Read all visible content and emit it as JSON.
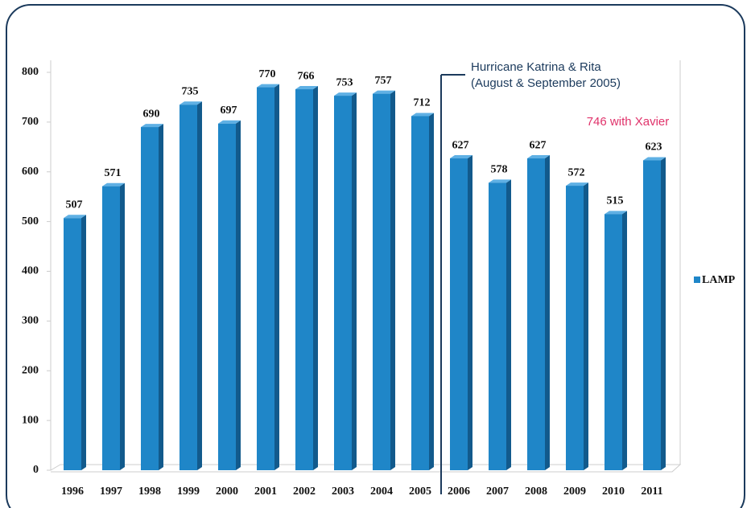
{
  "chart_data": {
    "type": "bar",
    "categories": [
      "1996",
      "1997",
      "1998",
      "1999",
      "2000",
      "2001",
      "2002",
      "2003",
      "2004",
      "2005",
      "2006",
      "2007",
      "2008",
      "2009",
      "2010",
      "2011"
    ],
    "series": [
      {
        "name": "LAMP",
        "color": "#1f86c8",
        "values": [
          507,
          571,
          690,
          735,
          697,
          770,
          766,
          753,
          757,
          712,
          627,
          578,
          627,
          572,
          515,
          623
        ]
      }
    ],
    "ylim": [
      0,
      800
    ],
    "yticks": [
      0,
      100,
      200,
      300,
      400,
      500,
      600,
      700,
      800
    ],
    "annotations": [
      "Hurricane Katrina & Rita",
      "(August & September 2005)",
      "746 with Xavier"
    ]
  }
}
